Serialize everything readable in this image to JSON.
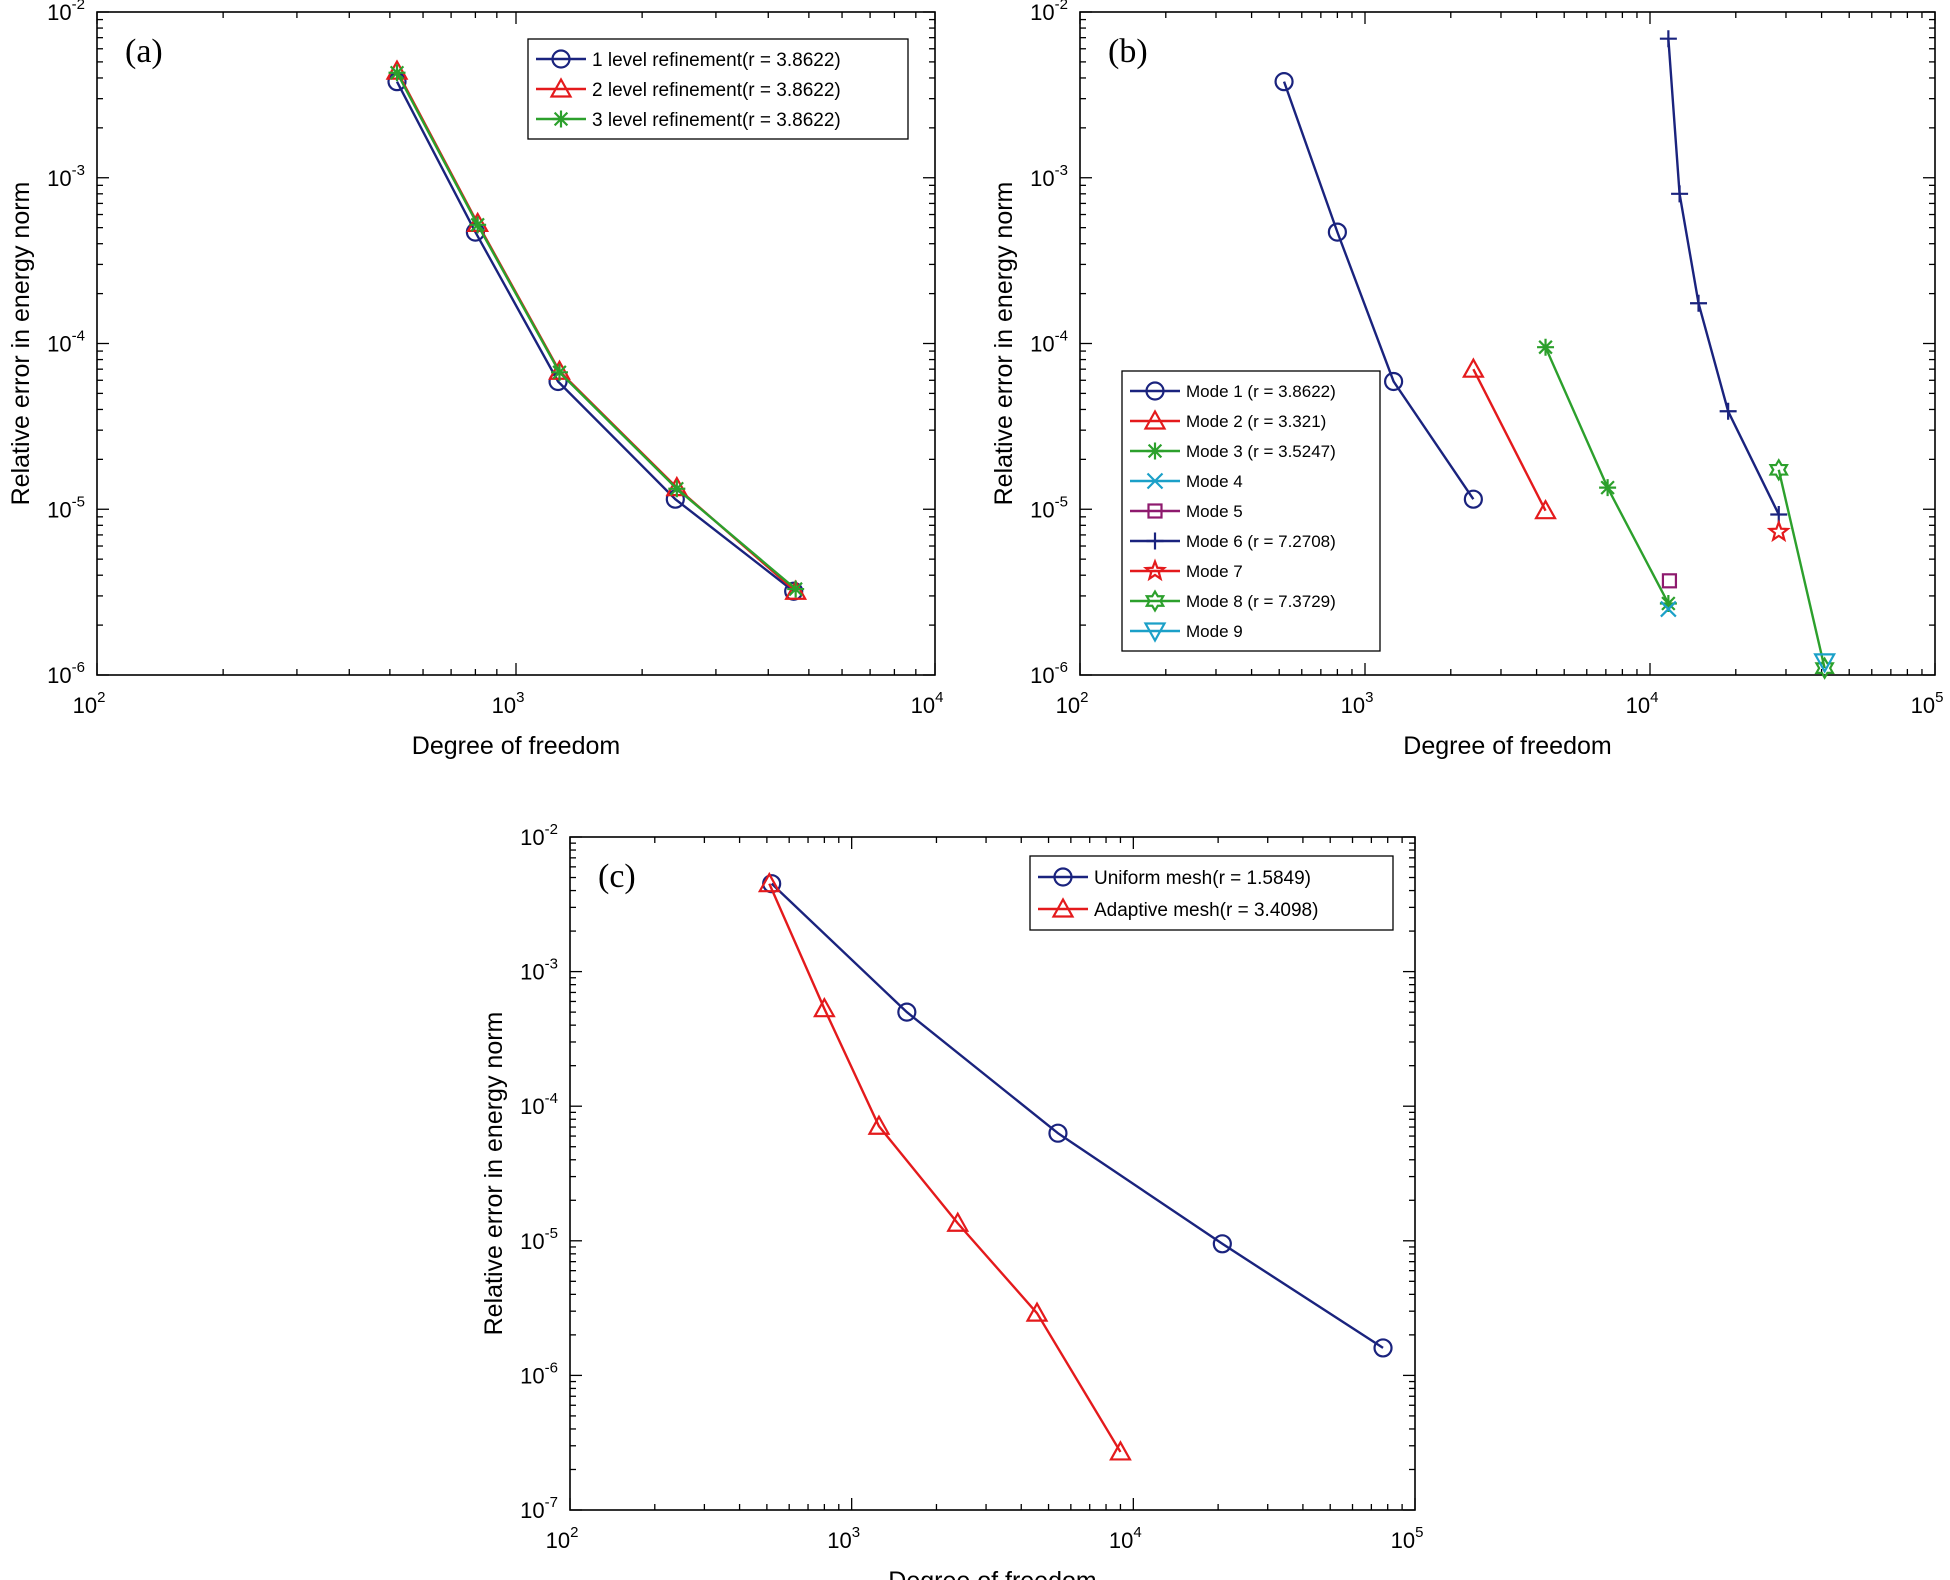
{
  "chart_data": [
    {
      "type": "line",
      "panel_label": "(a)",
      "xlabel": "Degree of freedom",
      "ylabel": "Relative error in energy norm",
      "xscale": "log",
      "yscale": "log",
      "xlim": [
        100,
        10000
      ],
      "ylim": [
        1e-06,
        0.01
      ],
      "x_ticks": [
        {
          "base": "10",
          "exp": "2"
        },
        {
          "base": "10",
          "exp": "3"
        },
        {
          "base": "10",
          "exp": "4"
        }
      ],
      "y_ticks": [
        {
          "base": "10",
          "exp": "-6"
        },
        {
          "base": "10",
          "exp": "-5"
        },
        {
          "base": "10",
          "exp": "-4"
        },
        {
          "base": "10",
          "exp": "-3"
        },
        {
          "base": "10",
          "exp": "-2"
        }
      ],
      "legend_position": "top-right",
      "series": [
        {
          "name": "1 level refinement(r = 3.8622)",
          "color": "#1a237e",
          "marker": "circle",
          "x": [
            520,
            800,
            1260,
            2400,
            4600
          ],
          "y": [
            0.0038,
            0.00047,
            5.9e-05,
            1.15e-05,
            3.2e-06
          ]
        },
        {
          "name": "2 level refinement(r = 3.8622)",
          "color": "#e41a1c",
          "marker": "triangle-up",
          "x": [
            520,
            810,
            1270,
            2420,
            4650
          ],
          "y": [
            0.0044,
            0.00053,
            6.8e-05,
            1.35e-05,
            3.2e-06
          ]
        },
        {
          "name": "3 level refinement(r = 3.8622)",
          "color": "#2ca02c",
          "marker": "asterisk",
          "x": [
            520,
            810,
            1270,
            2420,
            4650
          ],
          "y": [
            0.0043,
            0.00052,
            6.7e-05,
            1.33e-05,
            3.3e-06
          ]
        }
      ]
    },
    {
      "type": "line",
      "panel_label": "(b)",
      "xlabel": "Degree of freedom",
      "ylabel": "Relative error in energy norm",
      "xscale": "log",
      "yscale": "log",
      "xlim": [
        100,
        100000
      ],
      "ylim": [
        1e-06,
        0.01
      ],
      "x_ticks": [
        {
          "base": "10",
          "exp": "2"
        },
        {
          "base": "10",
          "exp": "3"
        },
        {
          "base": "10",
          "exp": "4"
        },
        {
          "base": "10",
          "exp": "5"
        }
      ],
      "y_ticks": [
        {
          "base": "10",
          "exp": "-6"
        },
        {
          "base": "10",
          "exp": "-5"
        },
        {
          "base": "10",
          "exp": "-4"
        },
        {
          "base": "10",
          "exp": "-3"
        },
        {
          "base": "10",
          "exp": "-2"
        }
      ],
      "legend_position": "bottom-left",
      "series": [
        {
          "name": "Mode 1 (r = 3.8622)",
          "color": "#1a237e",
          "marker": "circle",
          "x": [
            520,
            800,
            1260,
            2400
          ],
          "y": [
            0.0038,
            0.00047,
            5.9e-05,
            1.15e-05
          ]
        },
        {
          "name": "Mode 2 (r = 3.321)",
          "color": "#e41a1c",
          "marker": "triangle-up",
          "x": [
            2400,
            4300
          ],
          "y": [
            7e-05,
            9.8e-06
          ]
        },
        {
          "name": "Mode 3 (r = 3.5247)",
          "color": "#2ca02c",
          "marker": "asterisk",
          "x": [
            4300,
            7100,
            11600
          ],
          "y": [
            9.5e-05,
            1.35e-05,
            2.7e-06
          ]
        },
        {
          "name": "Mode 4",
          "color": "#1ba0c8",
          "marker": "x",
          "x": [
            11600
          ],
          "y": [
            2.5e-06
          ]
        },
        {
          "name": "Mode 5",
          "color": "#8e1a6e",
          "marker": "square",
          "x": [
            11700
          ],
          "y": [
            3.7e-06
          ]
        },
        {
          "name": "Mode 6 (r = 7.2708)",
          "color": "#1a237e",
          "marker": "plus",
          "x": [
            11600,
            12700,
            14800,
            18800,
            28300
          ],
          "y": [
            0.0069,
            0.0008,
            0.000175,
            3.9e-05,
            9.3e-06
          ]
        },
        {
          "name": "Mode 7",
          "color": "#e41a1c",
          "marker": "pentagram",
          "x": [
            28300
          ],
          "y": [
            7.3e-06
          ]
        },
        {
          "name": "Mode 8 (r = 7.3729)",
          "color": "#2ca02c",
          "marker": "hexagram",
          "x": [
            28300,
            41000
          ],
          "y": [
            1.73e-05,
            1.1e-06
          ]
        },
        {
          "name": "Mode 9",
          "color": "#1ba0c8",
          "marker": "triangle-down",
          "x": [
            41000
          ],
          "y": [
            1.2e-06
          ]
        }
      ]
    },
    {
      "type": "line",
      "panel_label": "(c)",
      "xlabel": "Degree of freedom",
      "ylabel": "Relative error in energy norm",
      "xscale": "log",
      "yscale": "log",
      "xlim": [
        100,
        100000
      ],
      "ylim": [
        1e-07,
        0.01
      ],
      "x_ticks": [
        {
          "base": "10",
          "exp": "2"
        },
        {
          "base": "10",
          "exp": "3"
        },
        {
          "base": "10",
          "exp": "4"
        },
        {
          "base": "10",
          "exp": "5"
        }
      ],
      "y_ticks": [
        {
          "base": "10",
          "exp": "-7"
        },
        {
          "base": "10",
          "exp": "-6"
        },
        {
          "base": "10",
          "exp": "-5"
        },
        {
          "base": "10",
          "exp": "-4"
        },
        {
          "base": "10",
          "exp": "-3"
        },
        {
          "base": "10",
          "exp": "-2"
        }
      ],
      "legend_position": "top-right",
      "series": [
        {
          "name": "Uniform mesh(r = 1.5849)",
          "color": "#1a237e",
          "marker": "circle",
          "x": [
            520,
            1570,
            5400,
            20700,
            77000
          ],
          "y": [
            0.0045,
            0.0005,
            6.3e-05,
            9.5e-06,
            1.6e-06
          ]
        },
        {
          "name": "Adaptive mesh(r = 3.4098)",
          "color": "#e41a1c",
          "marker": "triangle-up",
          "x": [
            510,
            800,
            1250,
            2380,
            4550,
            9000
          ],
          "y": [
            0.0045,
            0.00053,
            7.1e-05,
            1.35e-05,
            2.9e-06,
            2.7e-07
          ]
        }
      ]
    }
  ]
}
